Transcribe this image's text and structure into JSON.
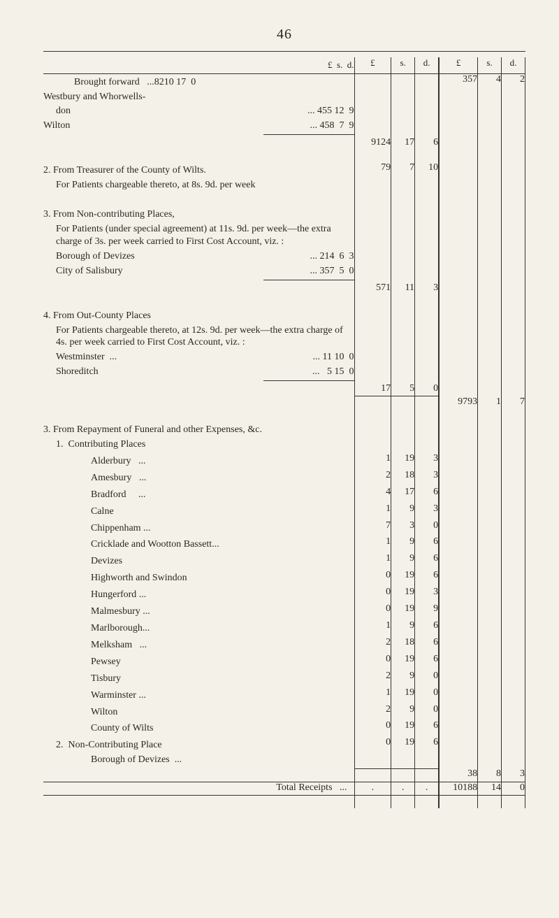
{
  "page_number": "46",
  "headers": {
    "l": "£",
    "s": "s.",
    "d": "d.",
    "L": "£",
    "S": "s.",
    "D": "d."
  },
  "lines": {
    "brought_fwd": "Brought forward   ...8210 17  0",
    "westbury": "Westbury and Whorwells-",
    "don": "don",
    "don_amt": "... 455 12  9",
    "wilton": "Wilton",
    "wilton_amt": "... 458  7  9",
    "inner_9124": {
      "l": "9124",
      "s": "17",
      "d": "6"
    },
    "outer_357": {
      "L": "357",
      "S": "4",
      "D": "2"
    },
    "sec2_head": "2. From Treasurer of the County of Wilts.",
    "sec2_body": "For Patients chargeable thereto, at 8s. 9d. per week",
    "inner_79": {
      "l": "79",
      "s": "7",
      "d": "10"
    },
    "sec3_head": "3. From Non-contributing Places,",
    "sec3_body1": "For Patients (under special agreement) at 11s. 9d. per week—the extra charge of 3s. per week carried to First Cost Account, viz. :",
    "borough_dev": "Borough of Devizes",
    "borough_dev_amt": "... 214  6  3",
    "city_sal": "City of Salisbury",
    "city_sal_amt": "... 357  5  0",
    "inner_571": {
      "l": "571",
      "s": "11",
      "d": "3"
    },
    "sec4_head": "4. From Out-County Places",
    "sec4_body": "For Patients chargeable thereto, at 12s. 9d. per week—the extra charge of 4s. per week carried to First Cost Account, viz. :",
    "westminster": "Westminster  ...",
    "westminster_amt": "... 11 10  0",
    "shoreditch": "Shoreditch",
    "shoreditch_amt": "...   5 15  0",
    "inner_17": {
      "l": "17",
      "s": "5",
      "d": "0"
    },
    "outer_9793": {
      "L": "9793",
      "S": "1",
      "D": "7"
    },
    "sec3b_head": "3. From Repayment of Funeral and other Expenses, &c.",
    "sub1": "1.  Contributing Places",
    "places": [
      {
        "name": "Alderbury   ...",
        "l": "1",
        "s": "19",
        "d": "3"
      },
      {
        "name": "Amesbury   ...",
        "l": "2",
        "s": "18",
        "d": "3"
      },
      {
        "name": "Bradford     ...",
        "l": "4",
        "s": "17",
        "d": "6"
      },
      {
        "name": "Calne",
        "l": "1",
        "s": "9",
        "d": "3"
      },
      {
        "name": "Chippenham ...",
        "l": "7",
        "s": "3",
        "d": "0"
      },
      {
        "name": "Cricklade and Wootton Bassett...",
        "l": "1",
        "s": "9",
        "d": "6"
      },
      {
        "name": "Devizes",
        "l": "1",
        "s": "9",
        "d": "6"
      },
      {
        "name": "Highworth and Swindon",
        "l": "0",
        "s": "19",
        "d": "6"
      },
      {
        "name": "Hungerford ...",
        "l": "0",
        "s": "19",
        "d": "3"
      },
      {
        "name": "Malmesbury ...",
        "l": "0",
        "s": "19",
        "d": "9"
      },
      {
        "name": "Marlborough...",
        "l": "1",
        "s": "9",
        "d": "6"
      },
      {
        "name": "Melksham   ...",
        "l": "2",
        "s": "18",
        "d": "6"
      },
      {
        "name": "Pewsey",
        "l": "0",
        "s": "19",
        "d": "6"
      },
      {
        "name": "Tisbury",
        "l": "2",
        "s": "9",
        "d": "0"
      },
      {
        "name": "Warminster ...",
        "l": "1",
        "s": "19",
        "d": "0"
      },
      {
        "name": "Wilton",
        "l": "2",
        "s": "9",
        "d": "0"
      },
      {
        "name": "County of Wilts",
        "l": "0",
        "s": "19",
        "d": "6"
      }
    ],
    "sub2": "2.  Non-Contributing Place",
    "sub2_item": "Borough of Devizes  ...",
    "sub2_amt": {
      "l": "0",
      "s": "19",
      "d": "6"
    },
    "outer_38": {
      "L": "38",
      "S": "8",
      "D": "3"
    },
    "total_label": "Total Receipts   ...",
    "grand": {
      "L": "10188",
      "S": "14",
      "D": "0"
    }
  }
}
